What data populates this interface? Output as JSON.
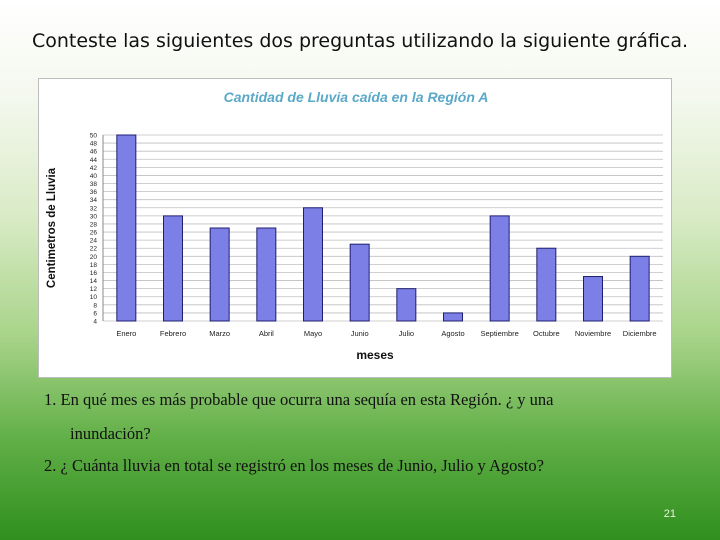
{
  "slide": {
    "title": "Conteste las siguientes dos preguntas utilizando la siguiente gráfica.",
    "question1_line1": "1. En qué mes es más probable que ocurra una sequía en esta Región. ¿ y una",
    "question1_line2": "inundación?",
    "question2": "2.  ¿ Cuánta lluvia en total se registró en los meses de Junio, Julio y Agosto?",
    "page_number": "21"
  },
  "chart_data": {
    "type": "bar",
    "title": "Cantidad de Lluvia caída en la Región A",
    "xlabel": "meses",
    "ylabel": "Centimetros de Lluvia",
    "categories": [
      "Enero",
      "Febrero",
      "Marzo",
      "Abril",
      "Mayo",
      "Junio",
      "Julio",
      "Agosto",
      "Septiembre",
      "Octubre",
      "Noviembre",
      "Diciembre"
    ],
    "values": [
      50,
      30,
      27,
      27,
      32,
      23,
      12,
      6,
      30,
      22,
      15,
      20
    ],
    "ylim": [
      4,
      50
    ],
    "yticks": [
      "4",
      "6",
      "8",
      "10",
      "12",
      "14",
      "16",
      "18",
      "20",
      "22",
      "24",
      "26",
      "28",
      "30",
      "32",
      "34",
      "36",
      "38",
      "40",
      "42",
      "44",
      "46",
      "48",
      "50"
    ],
    "grid": true,
    "colors": {
      "bar_fill": "#7b7fe6",
      "bar_stroke": "#1f1f6e",
      "title": "#5aa9c8",
      "grid": "#bfbfbf"
    }
  }
}
